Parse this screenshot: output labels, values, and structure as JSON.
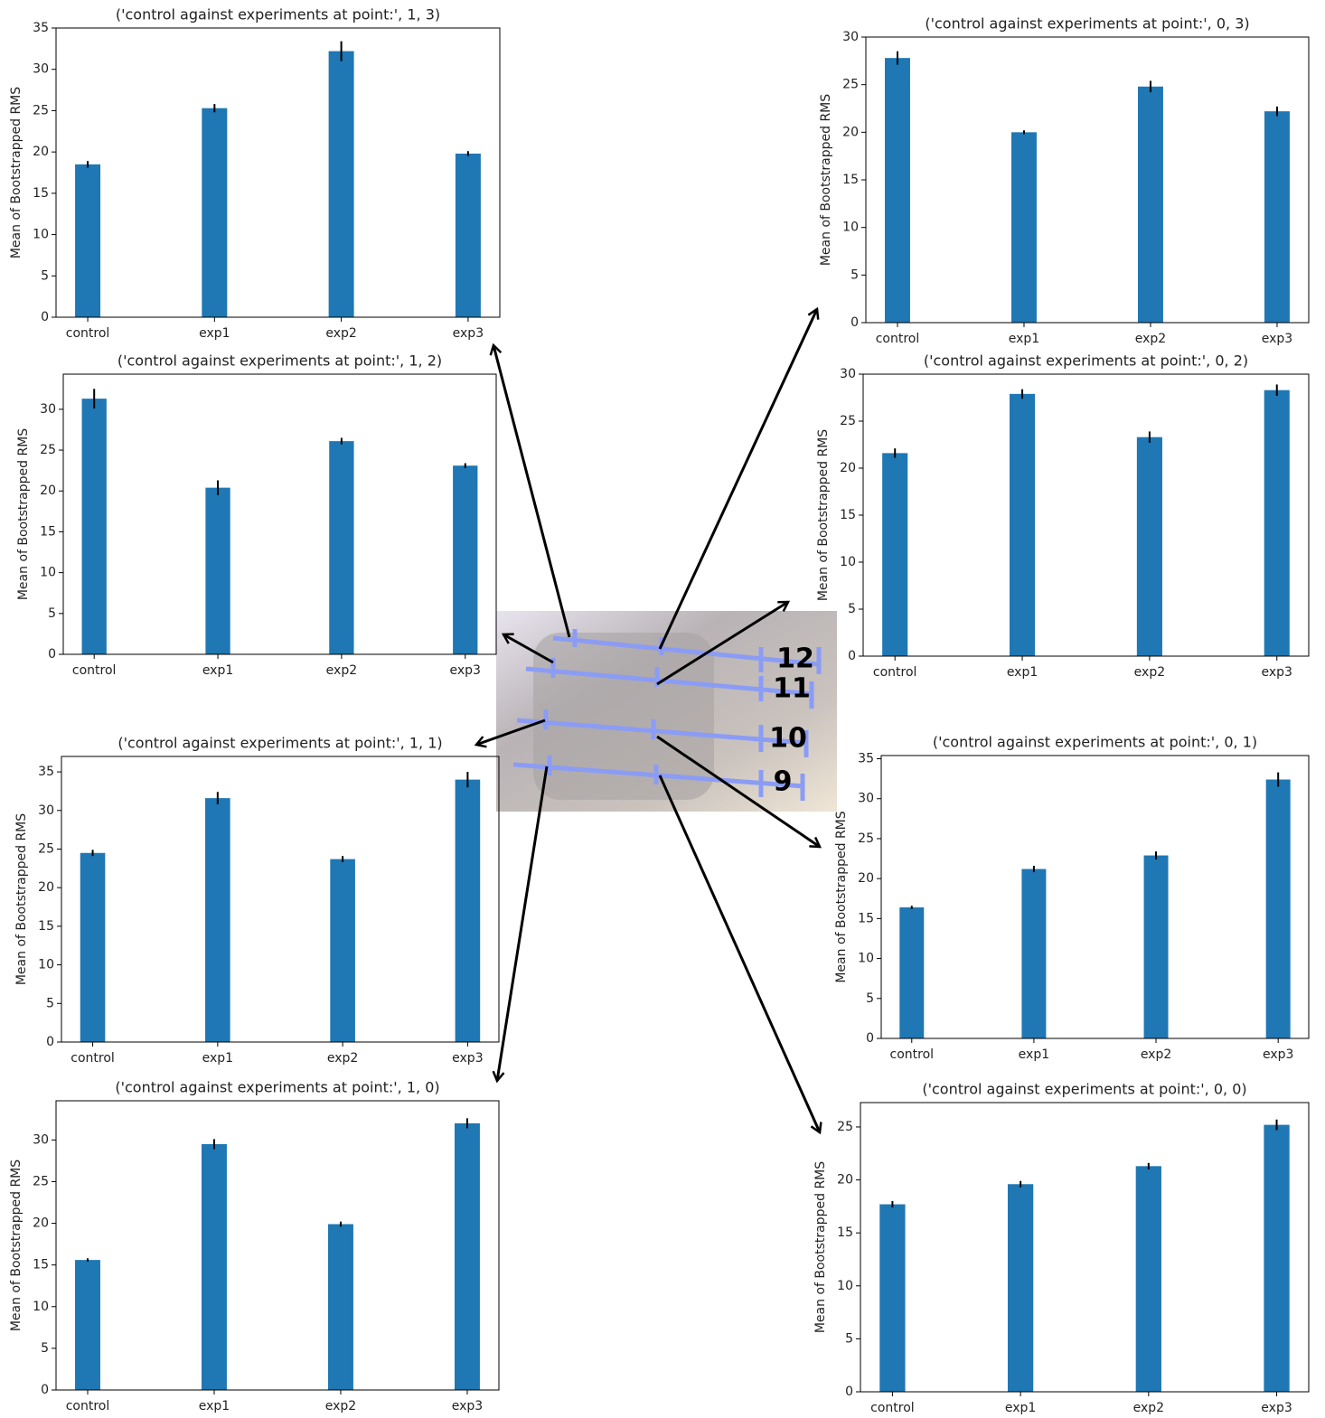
{
  "chart_data": [
    {
      "type": "bar",
      "title": "('control against experiments at point:', 1, 3)",
      "y_label": "Mean of Bootstrapped RMS",
      "categories": [
        "control",
        "exp1",
        "exp2",
        "exp3"
      ],
      "values": [
        18.5,
        25.3,
        32.2,
        19.8
      ],
      "errors": [
        0.4,
        0.5,
        1.2,
        0.3
      ],
      "color": "#1f77b4",
      "ylim": [
        0,
        35
      ],
      "yticks": [
        0,
        5,
        10,
        15,
        20,
        25,
        30,
        35
      ]
    },
    {
      "type": "bar",
      "title": "('control against experiments at point:', 0, 3)",
      "y_label": "Mean of Bootstrapped RMS",
      "categories": [
        "control",
        "exp1",
        "exp2",
        "exp3"
      ],
      "values": [
        27.8,
        20.0,
        24.8,
        22.2
      ],
      "errors": [
        0.7,
        0.2,
        0.6,
        0.5
      ],
      "color": "#1f77b4",
      "ylim": [
        0,
        30
      ],
      "yticks": [
        0,
        5,
        10,
        15,
        20,
        25,
        30
      ]
    },
    {
      "type": "bar",
      "title": "('control against experiments at point:', 1, 2)",
      "y_label": "Mean of Bootstrapped RMS",
      "categories": [
        "control",
        "exp1",
        "exp2",
        "exp3"
      ],
      "values": [
        31.3,
        20.4,
        26.1,
        23.1
      ],
      "errors": [
        1.2,
        0.9,
        0.4,
        0.3
      ],
      "color": "#1f77b4",
      "ylim": [
        0,
        34.3
      ],
      "yticks": [
        0,
        5,
        10,
        15,
        20,
        25,
        30
      ]
    },
    {
      "type": "bar",
      "title": "('control against experiments at point:', 0, 2)",
      "y_label": "Mean of Bootstrapped RMS",
      "categories": [
        "control",
        "exp1",
        "exp2",
        "exp3"
      ],
      "values": [
        21.6,
        27.9,
        23.3,
        28.3
      ],
      "errors": [
        0.5,
        0.5,
        0.6,
        0.6
      ],
      "color": "#1f77b4",
      "ylim": [
        0,
        30
      ],
      "yticks": [
        0,
        5,
        10,
        15,
        20,
        25,
        30
      ]
    },
    {
      "type": "bar",
      "title": "('control against experiments at point:', 1, 1)",
      "y_label": "Mean of Bootstrapped RMS",
      "categories": [
        "control",
        "exp1",
        "exp2",
        "exp3"
      ],
      "values": [
        24.5,
        31.6,
        23.7,
        34.0
      ],
      "errors": [
        0.4,
        0.8,
        0.4,
        1.0
      ],
      "color": "#1f77b4",
      "ylim": [
        0,
        37
      ],
      "yticks": [
        0,
        5,
        10,
        15,
        20,
        25,
        30,
        35
      ]
    },
    {
      "type": "bar",
      "title": "('control against experiments at point:', 0, 1)",
      "y_label": "Mean of Bootstrapped RMS",
      "categories": [
        "control",
        "exp1",
        "exp2",
        "exp3"
      ],
      "values": [
        16.4,
        21.2,
        22.9,
        32.4
      ],
      "errors": [
        0.2,
        0.4,
        0.5,
        0.9
      ],
      "color": "#1f77b4",
      "ylim": [
        0,
        35.4
      ],
      "yticks": [
        0,
        5,
        10,
        15,
        20,
        25,
        30,
        35
      ]
    },
    {
      "type": "bar",
      "title": "('control against experiments at point:', 1, 0)",
      "y_label": "Mean of Bootstrapped RMS",
      "categories": [
        "control",
        "exp1",
        "exp2",
        "exp3"
      ],
      "values": [
        15.6,
        29.5,
        19.9,
        32.0
      ],
      "errors": [
        0.2,
        0.6,
        0.3,
        0.6
      ],
      "color": "#1f77b4",
      "ylim": [
        0,
        34.7
      ],
      "yticks": [
        0,
        5,
        10,
        15,
        20,
        25,
        30
      ]
    },
    {
      "type": "bar",
      "title": "('control against experiments at point:', 0, 0)",
      "y_label": "Mean of Bootstrapped RMS",
      "categories": [
        "control",
        "exp1",
        "exp2",
        "exp3"
      ],
      "values": [
        17.7,
        19.6,
        21.3,
        25.2
      ],
      "errors": [
        0.3,
        0.3,
        0.3,
        0.5
      ],
      "color": "#1f77b4",
      "ylim": [
        0,
        27.3
      ],
      "yticks": [
        0,
        5,
        10,
        15,
        20,
        25
      ]
    }
  ],
  "photo": {
    "labels": [
      "12",
      "11",
      "10",
      "9"
    ]
  }
}
